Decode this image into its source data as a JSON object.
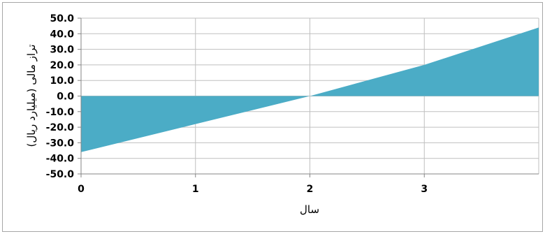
{
  "chart_data": {
    "type": "area",
    "xlabel": "سال",
    "ylabel": "تراز مالی (میلیارد ریال)",
    "xlim": [
      0,
      4
    ],
    "ylim": [
      -50,
      50
    ],
    "x_ticks": [
      0,
      1,
      2,
      3
    ],
    "x_tick_labels": [
      "0",
      "1",
      "2",
      "3"
    ],
    "y_ticks": [
      50,
      40,
      30,
      20,
      10,
      0,
      -10,
      -20,
      -30,
      -40,
      -50
    ],
    "y_tick_labels": [
      "50.0",
      "40.0",
      "30.0",
      "20.0",
      "10.0",
      "0.0",
      "-10.0",
      "-20.0",
      "-30.0",
      "-40.0",
      "-50.0"
    ],
    "grid": true,
    "series": [
      {
        "x": [
          0,
          1,
          2,
          3,
          4
        ],
        "values": [
          -36,
          -18,
          0,
          20,
          44
        ]
      }
    ],
    "colors": {
      "fill": "#4bacc6",
      "grid": "#bfbfbf",
      "axis": "#868686"
    }
  }
}
